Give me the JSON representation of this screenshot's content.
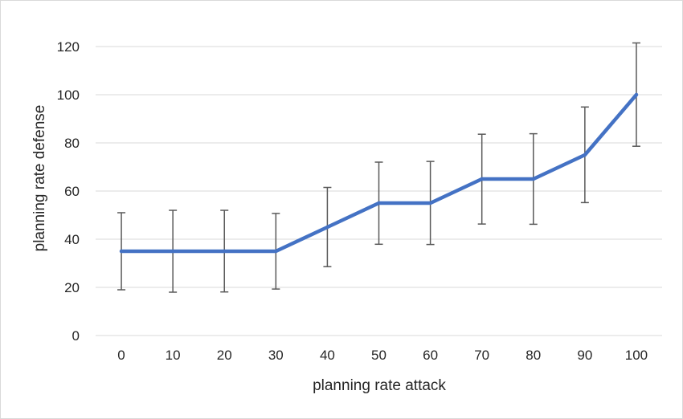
{
  "chart_data": {
    "type": "line",
    "title": "",
    "xlabel": "planning rate attack",
    "ylabel": "planning rate defense",
    "categories": [
      "0",
      "10",
      "20",
      "30",
      "40",
      "50",
      "60",
      "70",
      "80",
      "90",
      "100"
    ],
    "series": [
      {
        "values": [
          35,
          35,
          35,
          35,
          45,
          55,
          55,
          65,
          65,
          75,
          100
        ],
        "error_upper": [
          51,
          52,
          52,
          50.7,
          61.5,
          72,
          72.3,
          83.6,
          83.8,
          94.9,
          121.5
        ],
        "error_lower": [
          19,
          18,
          18.1,
          19.3,
          28.6,
          37.9,
          37.8,
          46.3,
          46.2,
          55.2,
          78.6
        ],
        "color": "#4472c4"
      }
    ],
    "ylim": [
      0,
      120
    ],
    "yticks": [
      "0",
      "20",
      "40",
      "60",
      "80",
      "100",
      "120"
    ],
    "grid": true,
    "legend": "none",
    "error_bar_color": "#595959",
    "gridline_color": "#d9d9d9"
  }
}
